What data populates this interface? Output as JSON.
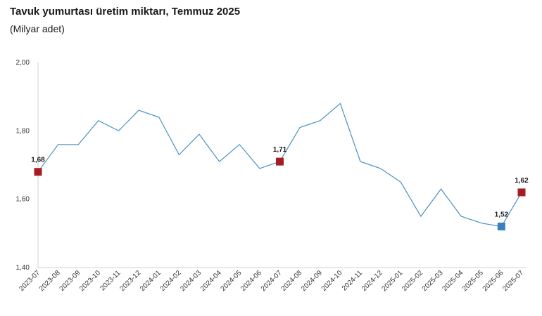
{
  "header": {
    "title": "Tavuk yumurtası üretim miktarı, Temmuz 2025",
    "subtitle": "(Milyar adet)"
  },
  "chart_data": {
    "type": "line",
    "title": "Tavuk yumurtası üretim miktarı, Temmuz 2025",
    "subtitle": "(Milyar adet)",
    "xlabel": "",
    "ylabel": "",
    "categories": [
      "2023-07",
      "2023-08",
      "2023-09",
      "2023-10",
      "2023-11",
      "2023-12",
      "2024-01",
      "2024-02",
      "2024-03",
      "2024-04",
      "2024-05",
      "2024-06",
      "2024-07",
      "2024-08",
      "2024-09",
      "2024-10",
      "2024-11",
      "2024-12",
      "2025-01",
      "2025-02",
      "2025-03",
      "2025-04",
      "2025-05",
      "2025-06",
      "2025-07"
    ],
    "values": [
      1.68,
      1.76,
      1.76,
      1.83,
      1.8,
      1.86,
      1.84,
      1.73,
      1.79,
      1.71,
      1.76,
      1.69,
      1.71,
      1.81,
      1.83,
      1.88,
      1.71,
      1.69,
      1.65,
      1.55,
      1.63,
      1.55,
      1.53,
      1.52,
      1.62
    ],
    "ylim": [
      1.4,
      2.0
    ],
    "yticks": [
      "1,40",
      "1,60",
      "1,80",
      "2,00"
    ],
    "ytick_values": [
      1.4,
      1.6,
      1.8,
      2.0
    ],
    "grid": false,
    "line_color": "#4a90c2",
    "highlights": [
      {
        "index": 0,
        "label": "1,68",
        "color": "#a61c24"
      },
      {
        "index": 12,
        "label": "1,71",
        "color": "#a61c24"
      },
      {
        "index": 23,
        "label": "1,52",
        "color": "#3a7fc0"
      },
      {
        "index": 24,
        "label": "1,62",
        "color": "#a61c24"
      }
    ]
  }
}
